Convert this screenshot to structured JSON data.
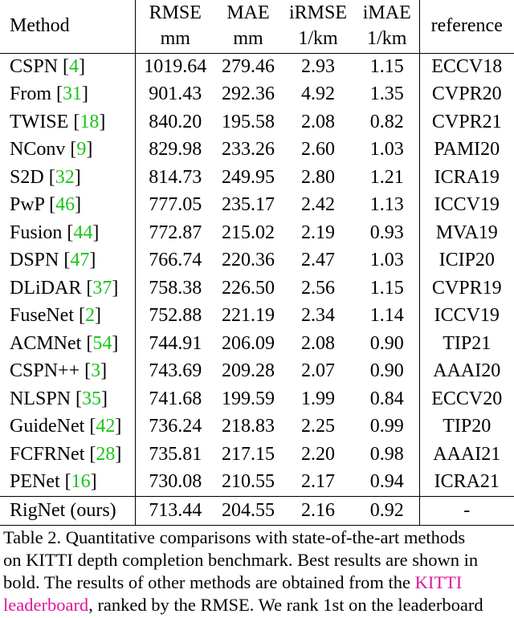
{
  "table": {
    "headers": {
      "method": "Method",
      "rmse": [
        "RMSE",
        "mm"
      ],
      "mae": [
        "MAE",
        "mm"
      ],
      "irmse": [
        "iRMSE",
        "1/km"
      ],
      "imae": [
        "iMAE",
        "1/km"
      ],
      "reference": "reference"
    },
    "rows": [
      {
        "name": "CSPN",
        "cite": "4",
        "rmse": "1019.64",
        "mae": "279.46",
        "irmse": "2.93",
        "imae": "1.15",
        "ref": "ECCV18"
      },
      {
        "name": "From",
        "cite": "31",
        "rmse": "901.43",
        "mae": "292.36",
        "irmse": "4.92",
        "imae": "1.35",
        "ref": "CVPR20"
      },
      {
        "name": "TWISE",
        "cite": "18",
        "rmse": "840.20",
        "mae": "195.58",
        "irmse": "2.08",
        "imae": "0.82",
        "ref": "CVPR21"
      },
      {
        "name": "NConv",
        "cite": "9",
        "rmse": "829.98",
        "mae": "233.26",
        "irmse": "2.60",
        "imae": "1.03",
        "ref": "PAMI20"
      },
      {
        "name": "S2D",
        "cite": "32",
        "rmse": "814.73",
        "mae": "249.95",
        "irmse": "2.80",
        "imae": "1.21",
        "ref": "ICRA19"
      },
      {
        "name": "PwP",
        "cite": "46",
        "rmse": "777.05",
        "mae": "235.17",
        "irmse": "2.42",
        "imae": "1.13",
        "ref": "ICCV19"
      },
      {
        "name": "Fusion",
        "cite": "44",
        "rmse": "772.87",
        "mae": "215.02",
        "irmse": "2.19",
        "imae": "0.93",
        "ref": "MVA19"
      },
      {
        "name": "DSPN",
        "cite": "47",
        "rmse": "766.74",
        "mae": "220.36",
        "irmse": "2.47",
        "imae": "1.03",
        "ref": "ICIP20"
      },
      {
        "name": "DLiDAR",
        "cite": "37",
        "rmse": "758.38",
        "mae": "226.50",
        "irmse": "2.56",
        "imae": "1.15",
        "ref": "CVPR19"
      },
      {
        "name": "FuseNet",
        "cite": "2",
        "rmse": "752.88",
        "mae": "221.19",
        "irmse": "2.34",
        "imae": "1.14",
        "ref": "ICCV19"
      },
      {
        "name": "ACMNet",
        "cite": "54",
        "rmse": "744.91",
        "mae": "206.09",
        "irmse": "2.08",
        "imae": "0.90",
        "ref": "TIP21"
      },
      {
        "name": "CSPN++",
        "cite": "3",
        "rmse": "743.69",
        "mae": "209.28",
        "irmse": "2.07",
        "imae": "0.90",
        "ref": "AAAI20"
      },
      {
        "name": "NLSPN",
        "cite": "35",
        "rmse": "741.68",
        "mae": "199.59",
        "irmse": "1.99",
        "imae": "0.84",
        "ref": "ECCV20"
      },
      {
        "name": "GuideNet",
        "cite": "42",
        "rmse": "736.24",
        "mae": "218.83",
        "irmse": "2.25",
        "imae": "0.99",
        "ref": "TIP20"
      },
      {
        "name": "FCFRNet",
        "cite": "28",
        "rmse": "735.81",
        "mae": "217.15",
        "irmse": "2.20",
        "imae": "0.98",
        "ref": "AAAI21"
      },
      {
        "name": "PENet",
        "cite": "16",
        "rmse": "730.08",
        "mae": "210.55",
        "irmse": "2.17",
        "imae": "0.94",
        "ref": "ICRA21"
      }
    ],
    "last_row": {
      "name": "RigNet (ours)",
      "rmse": "713.44",
      "mae": "204.55",
      "irmse": "2.16",
      "imae": "0.92",
      "ref": "-"
    },
    "bold": {
      "rmse_row": "last",
      "mae_row": 2,
      "irmse_row": 12,
      "imae_row": 2
    }
  },
  "caption": {
    "line1": "Table 2. Quantitative comparisons with state-of-the-art methods",
    "line2": "on KITTI depth completion benchmark. Best results are shown in",
    "line3_a": "bold.  The results of other methods are obtained from the ",
    "link1": "KITTI",
    "link2": "leaderboard",
    "line4_b": ", ranked by the RMSE. We rank 1st on the leaderboard"
  },
  "colors": {
    "citation": "#19c419",
    "link": "#e0159b"
  }
}
